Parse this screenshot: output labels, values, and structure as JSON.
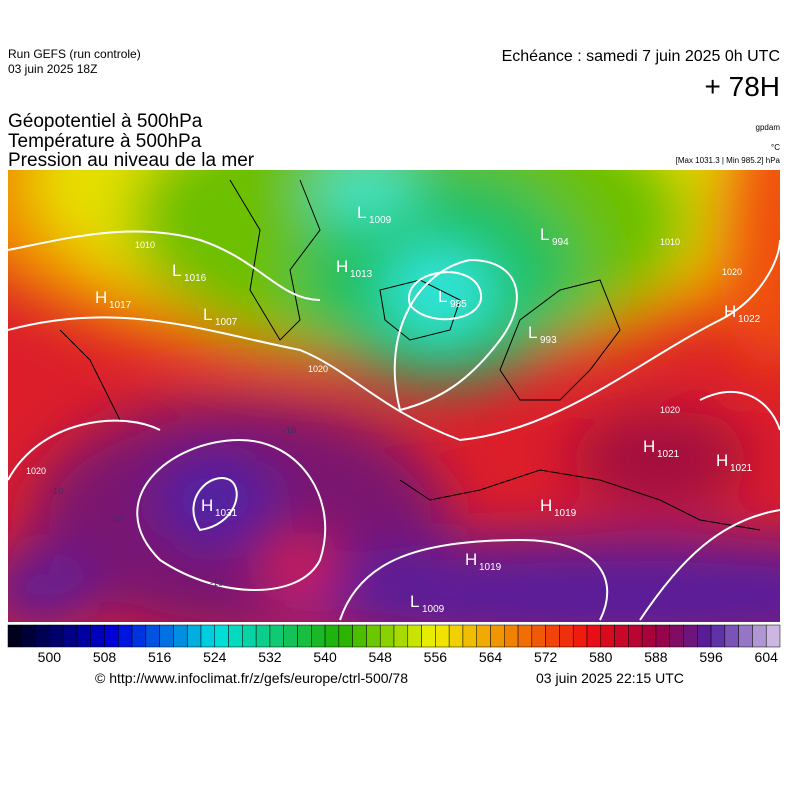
{
  "header": {
    "run": "Run GEFS (run controle)",
    "run_date": "03 juin 2025 18Z",
    "echeance": "Echéance : samedi 7 juin 2025 0h UTC",
    "lead": "+ 78H",
    "titles": [
      "Géopotentiel à 500hPa",
      "Température à 500hPa",
      "Pression au niveau de la mer"
    ],
    "unit_geopot": "gpdam",
    "unit_temp": "°C",
    "extremes": "[Max 1031.3 | Min 985.2] hPa"
  },
  "centers": [
    {
      "type": "H",
      "value": 1017
    },
    {
      "type": "L",
      "value": 1016
    },
    {
      "type": "L",
      "value": 1007
    },
    {
      "type": "L",
      "value": 1009
    },
    {
      "type": "H",
      "value": 1013
    },
    {
      "type": "L",
      "value": 985
    },
    {
      "type": "L",
      "value": 994
    },
    {
      "type": "L",
      "value": 993
    },
    {
      "type": "H",
      "value": 1022
    },
    {
      "type": "H",
      "value": 1021
    },
    {
      "type": "H",
      "value": 1021
    },
    {
      "type": "H",
      "value": 1031
    },
    {
      "type": "H",
      "value": 1019
    },
    {
      "type": "H",
      "value": 1019
    },
    {
      "type": "L",
      "value": 1009
    }
  ],
  "contour_labels": [
    1010,
    1020,
    1020,
    1020,
    1010,
    1020,
    -10,
    -10,
    -10,
    -10
  ],
  "colorbar": {
    "range": [
      494,
      606
    ],
    "step": 2,
    "ticks": [
      500,
      508,
      516,
      524,
      532,
      540,
      548,
      556,
      564,
      572,
      580,
      588,
      596,
      604
    ]
  },
  "footer": {
    "source": "© http://www.infoclimat.fr/z/gefs/europe/ctrl-500/78",
    "issued": "03 juin 2025 22:15 UTC"
  }
}
